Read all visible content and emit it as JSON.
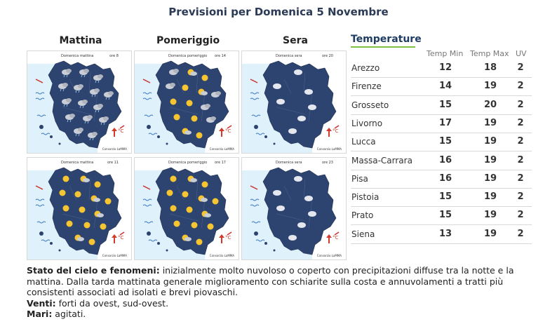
{
  "title": "Previsioni per Domenica 5 Novembre",
  "columns": [
    "Mattina",
    "Pomeriggio",
    "Sera"
  ],
  "maps": [
    {
      "label": "Domenica mattina",
      "hour": "ore 8"
    },
    {
      "label": "Domenica pomeriggio",
      "hour": "ore 14"
    },
    {
      "label": "Domenica sera",
      "hour": "ore 20"
    },
    {
      "label": "Domenica mattina",
      "hour": "ore 11"
    },
    {
      "label": "Domenica pomeriggio",
      "hour": "ore 17"
    },
    {
      "label": "Domenica sera",
      "hour": "ore 23"
    }
  ],
  "map_credit": "Consorzio LaMMA",
  "temp_unit": "°C",
  "temperature": {
    "title": "Temperature",
    "headers": [
      "Temp Min",
      "Temp Max",
      "UV"
    ],
    "rows": [
      {
        "city": "Arezzo",
        "min": "12",
        "max": "18",
        "uv": "2"
      },
      {
        "city": "Firenze",
        "min": "14",
        "max": "19",
        "uv": "2"
      },
      {
        "city": "Grosseto",
        "min": "15",
        "max": "20",
        "uv": "2"
      },
      {
        "city": "Livorno",
        "min": "17",
        "max": "19",
        "uv": "2"
      },
      {
        "city": "Lucca",
        "min": "15",
        "max": "19",
        "uv": "2"
      },
      {
        "city": "Massa-Carrara",
        "min": "16",
        "max": "19",
        "uv": "2"
      },
      {
        "city": "Pisa",
        "min": "16",
        "max": "19",
        "uv": "2"
      },
      {
        "city": "Pistoia",
        "min": "15",
        "max": "19",
        "uv": "2"
      },
      {
        "city": "Prato",
        "min": "15",
        "max": "19",
        "uv": "2"
      },
      {
        "city": "Siena",
        "min": "13",
        "max": "19",
        "uv": "2"
      }
    ]
  },
  "bulletin": {
    "sky_label": "Stato del cielo e fenomeni:",
    "sky_text": " inizialmente molto nuvoloso o coperto con precipitazioni diffuse tra la notte e la mattina. Dalla tarda mattinata generale miglioramento con schiarite sulla costa e annuvolamenti a tratti più consistenti associati ad isolati e brevi piovaschi.",
    "winds_label": "Venti:",
    "winds_text": " forti da ovest, sud-ovest.",
    "seas_label": "Mari:",
    "seas_text": " agitati."
  },
  "colors": {
    "land": "#2e4470",
    "sea": "#dff1fb",
    "sun": "#f6c531",
    "cloud": "#c9cdd6",
    "accent": "#7fbf3f"
  }
}
